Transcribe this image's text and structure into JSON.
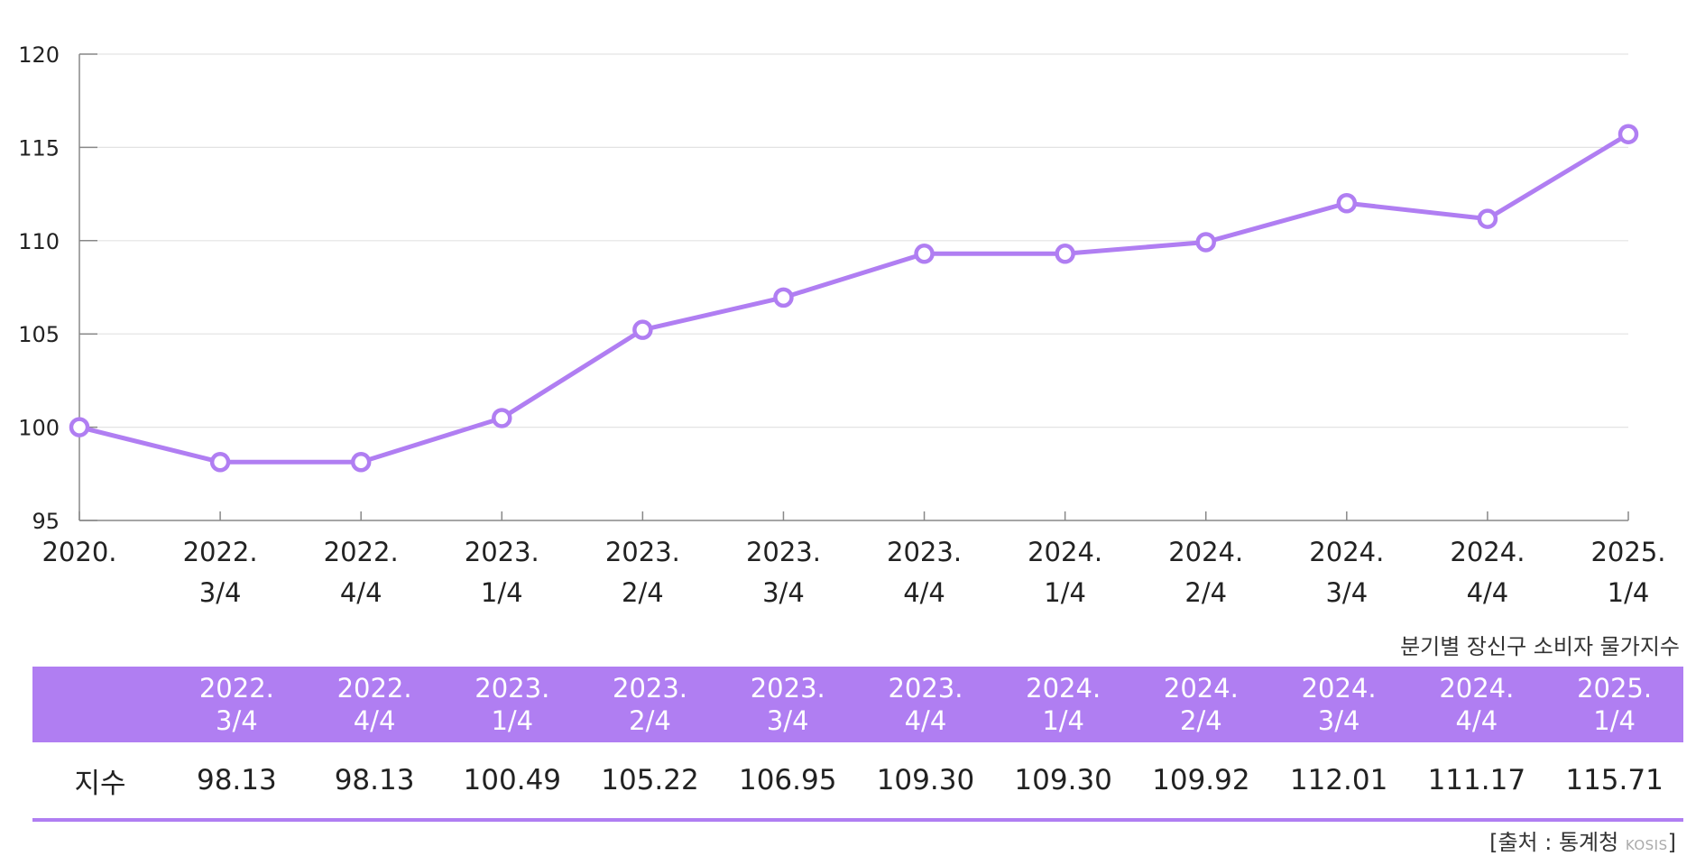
{
  "chart_data": {
    "type": "line",
    "categories": [
      [
        "2020."
      ],
      [
        "2022.",
        "3/4"
      ],
      [
        "2022.",
        "4/4"
      ],
      [
        "2023.",
        "1/4"
      ],
      [
        "2023.",
        "2/4"
      ],
      [
        "2023.",
        "3/4"
      ],
      [
        "2023.",
        "4/4"
      ],
      [
        "2024.",
        "1/4"
      ],
      [
        "2024.",
        "2/4"
      ],
      [
        "2024.",
        "3/4"
      ],
      [
        "2024.",
        "4/4"
      ],
      [
        "2025.",
        "1/4"
      ]
    ],
    "values": [
      100,
      98.13,
      98.13,
      100.49,
      105.22,
      106.95,
      109.3,
      109.3,
      109.92,
      112.01,
      111.17,
      115.71
    ],
    "ylim": [
      95,
      120
    ],
    "yticks": [
      95,
      100,
      105,
      110,
      115,
      120
    ],
    "grid": true,
    "line_color": "#b07ef2",
    "marker": "hollow-circle"
  },
  "caption": "분기별 장신구 소비자 물가지수",
  "table": {
    "header": [
      "",
      "2022.\n3/4",
      "2022.\n4/4",
      "2023.\n1/4",
      "2023.\n2/4",
      "2023.\n3/4",
      "2023.\n4/4",
      "2024.\n1/4",
      "2024.\n2/4",
      "2024.\n3/4",
      "2024.\n4/4",
      "2025.\n1/4"
    ],
    "row_label": "지수",
    "row_values": [
      "98.13",
      "98.13",
      "100.49",
      "105.22",
      "106.95",
      "109.30",
      "109.30",
      "109.92",
      "112.01",
      "111.17",
      "115.71"
    ],
    "accent_color": "#b07ef2"
  },
  "source": {
    "prefix": "[출처 : 통계청",
    "logo": "KOSIS",
    "suffix": "]"
  }
}
